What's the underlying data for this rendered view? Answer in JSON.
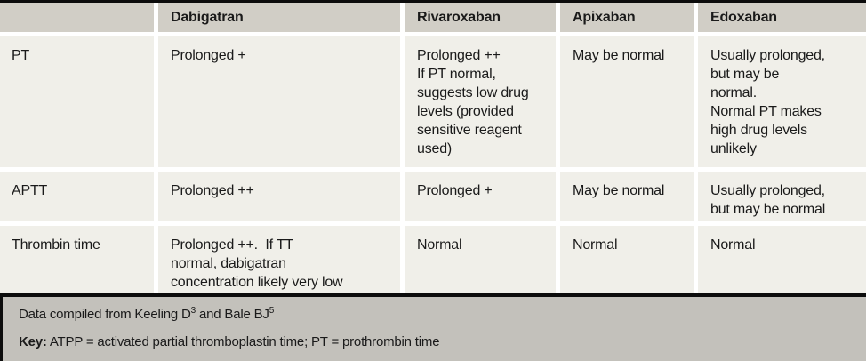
{
  "table": {
    "columns": [
      "Dabigatran",
      "Rivaroxaban",
      "Apixaban",
      "Edoxaban"
    ],
    "rows": [
      {
        "label": "PT",
        "cells": [
          "Prolonged +",
          "Prolonged ++\nIf PT normal,\nsuggests low drug\nlevels (provided\nsensitive reagent\nused)",
          "May be normal",
          "Usually prolonged,\nbut may be\nnormal.\nNormal PT makes\nhigh drug levels\nunlikely"
        ]
      },
      {
        "label": "APTT",
        "cells": [
          "Prolonged ++",
          "Prolonged +",
          "May be normal",
          "Usually prolonged,\nbut may be normal"
        ]
      },
      {
        "label": "Thrombin time",
        "cells": [
          "Prolonged ++.  If TT\nnormal, dabigatran\nconcentration likely very low",
          "Normal",
          "Normal",
          "Normal"
        ]
      }
    ]
  },
  "footer": {
    "source": {
      "prefix": "Data compiled from Keeling D",
      "sup1": "3",
      "mid": " and Bale BJ",
      "sup2": "5"
    },
    "key": {
      "label": "Key:",
      "text": " ATPP = activated partial thromboplastin time; PT = prothrombin time"
    }
  },
  "colors": {
    "header_bg": "#d1cec6",
    "body_bg": "#f0efe9",
    "footer_bg": "#c3c1bb",
    "rule": "#0c0c0c"
  }
}
